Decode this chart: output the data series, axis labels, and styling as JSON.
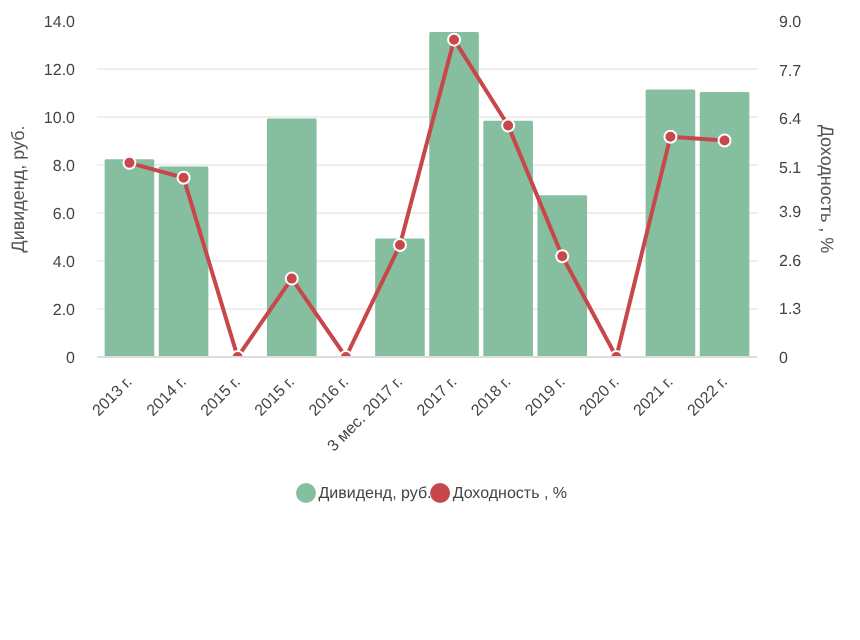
{
  "chart_data": {
    "type": "bar",
    "categories": [
      "2013 г.",
      "2014 г.",
      "2015 г.",
      "2015 г.",
      "2016 г.",
      "3 мес. 2017 г.",
      "2017 г.",
      "2018 г.",
      "2019 г.",
      "2020 г.",
      "2021 г.",
      "2022 г."
    ],
    "series": [
      {
        "name": "Дивиденд, руб.",
        "color": "#86bfa0",
        "values": [
          8.2,
          7.9,
          0,
          9.9,
          0,
          4.9,
          13.5,
          9.8,
          6.7,
          0,
          11.1,
          11.0
        ]
      },
      {
        "name": "Доходность , %",
        "type": "line",
        "axis": "y2",
        "color": "#c8474b",
        "marker": "circle",
        "values": [
          5.2,
          4.8,
          0,
          2.1,
          0,
          3.0,
          8.5,
          6.2,
          2.7,
          0,
          5.9,
          5.8
        ]
      }
    ],
    "ylabel": "Дивиденд, руб.",
    "y2label": "Доходность , %",
    "ylim": [
      0,
      14
    ],
    "yticks": [
      {
        "value": 0,
        "label": "0"
      },
      {
        "value": 2,
        "label": "2.0"
      },
      {
        "value": 4,
        "label": "4.0"
      },
      {
        "value": 6,
        "label": "6.0"
      },
      {
        "value": 8,
        "label": "8.0"
      },
      {
        "value": 10,
        "label": "10.0"
      },
      {
        "value": 12,
        "label": "12.0"
      },
      {
        "value": 14,
        "label": "14.0"
      }
    ],
    "y2lim": [
      0,
      9
    ],
    "y2ticks": [
      {
        "value": 0,
        "label": "0"
      },
      {
        "value": 1.3,
        "label": "1.3"
      },
      {
        "value": 2.6,
        "label": "2.6"
      },
      {
        "value": 3.9,
        "label": "3.9"
      },
      {
        "value": 5.1,
        "label": "5.1"
      },
      {
        "value": 6.4,
        "label": "6.4"
      },
      {
        "value": 7.7,
        "label": "7.7"
      },
      {
        "value": 9,
        "label": "9.0"
      }
    ],
    "grid": "y",
    "legend": "bottom"
  }
}
